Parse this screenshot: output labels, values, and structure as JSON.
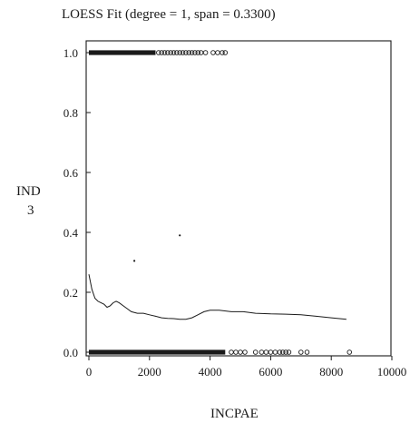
{
  "chart_data": {
    "type": "scatter",
    "title": "LOESS Fit (degree = 1, span = 0.3300)",
    "xlabel": "INCPAE",
    "ylabel": [
      "IND",
      "3"
    ],
    "xlim": [
      0,
      10000
    ],
    "ylim": [
      0,
      1
    ],
    "x_ticks": [
      "0",
      "2000",
      "4000",
      "6000",
      "8000",
      "10000"
    ],
    "y_ticks": [
      "0.0",
      "0.2",
      "0.4",
      "0.6",
      "0.8",
      "1.0"
    ],
    "grid": false,
    "legend": "none",
    "series": [
      {
        "type": "line",
        "x": [
          0,
          100,
          200,
          300,
          400,
          500,
          600,
          700,
          800,
          900,
          1000,
          1200,
          1400,
          1600,
          1800,
          2000,
          2200,
          2400,
          2600,
          2800,
          3000,
          3200,
          3400,
          3600,
          3800,
          4000,
          4300,
          4700,
          5100,
          5500,
          6000,
          6500,
          7000,
          7500,
          8000,
          8500
        ],
        "y": [
          0.26,
          0.21,
          0.18,
          0.17,
          0.165,
          0.16,
          0.15,
          0.155,
          0.165,
          0.17,
          0.165,
          0.15,
          0.135,
          0.13,
          0.13,
          0.125,
          0.12,
          0.115,
          0.113,
          0.112,
          0.11,
          0.11,
          0.115,
          0.125,
          0.135,
          0.14,
          0.14,
          0.135,
          0.135,
          0.13,
          0.128,
          0.127,
          0.125,
          0.12,
          0.115,
          0.11
        ]
      },
      {
        "type": "points",
        "y": 1,
        "x_dense": [
          0,
          2200
        ],
        "x": [
          2300,
          2400,
          2500,
          2600,
          2700,
          2800,
          2900,
          3000,
          3100,
          3200,
          3300,
          3400,
          3500,
          3600,
          3700,
          3850,
          4100,
          4250,
          4400,
          4500
        ]
      },
      {
        "type": "points",
        "y": 0,
        "x_dense": [
          0,
          4500
        ],
        "x": [
          4700,
          4850,
          5000,
          5150,
          5500,
          5700,
          5850,
          6000,
          6150,
          6300,
          6400,
          6500,
          6600,
          7000,
          7200,
          8600
        ]
      },
      {
        "type": "points",
        "x": [
          1500,
          3000
        ],
        "y": [
          0.305,
          0.39
        ]
      }
    ]
  }
}
